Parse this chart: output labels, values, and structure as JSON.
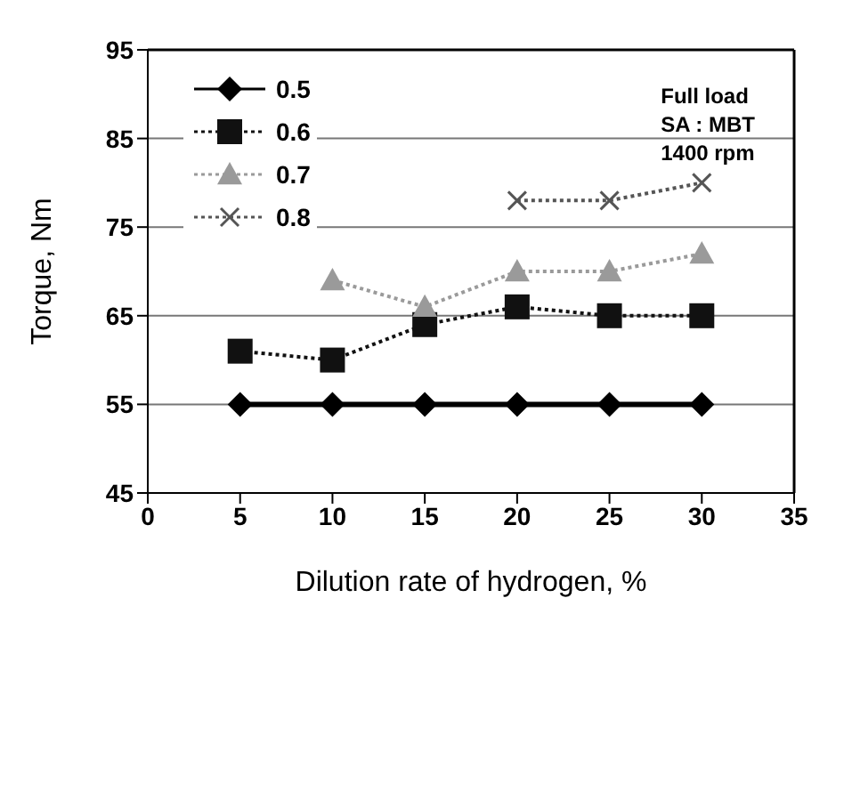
{
  "chart_data": {
    "type": "line",
    "xlabel": "Dilution rate of hydrogen, %",
    "ylabel": "Torque, Nm",
    "xlim": [
      0,
      35
    ],
    "xticks": [
      0,
      5,
      10,
      15,
      20,
      25,
      30,
      35
    ],
    "ylim": [
      45,
      95
    ],
    "yticks": [
      45,
      55,
      65,
      75,
      85,
      95
    ],
    "grid": "y",
    "legend": "top left",
    "annotations": [
      "Full load",
      "SA : MBT",
      "1400 rpm"
    ],
    "series": [
      {
        "name": "0.5",
        "color": "#000000",
        "marker": "diamond",
        "line_style": "solid",
        "x": [
          5,
          10,
          15,
          20,
          25,
          30
        ],
        "values": [
          55,
          55,
          55,
          55,
          55,
          55
        ]
      },
      {
        "name": "0.6",
        "color": "#111111",
        "marker": "square",
        "line_style": "dotted",
        "x": [
          5,
          10,
          15,
          20,
          25,
          30
        ],
        "values": [
          61,
          60,
          64,
          66,
          65,
          65
        ]
      },
      {
        "name": "0.7",
        "color": "#9a9a9a",
        "marker": "triangle",
        "line_style": "dotted",
        "x": [
          10,
          15,
          20,
          25,
          30
        ],
        "values": [
          69,
          66,
          70,
          70,
          72
        ]
      },
      {
        "name": "0.8",
        "color": "#555555",
        "marker": "cross",
        "line_style": "dotted",
        "x": [
          20,
          25,
          30
        ],
        "values": [
          78,
          78,
          80
        ]
      }
    ]
  }
}
